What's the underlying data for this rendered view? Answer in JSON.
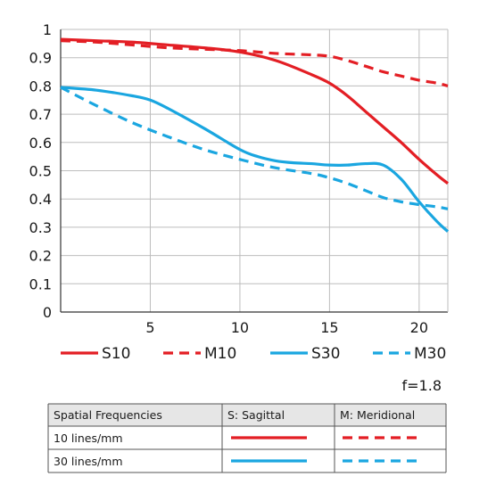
{
  "chart_data": {
    "type": "line",
    "title": "",
    "xlabel": "",
    "ylabel": "",
    "xlim": [
      0,
      21.6
    ],
    "ylim": [
      0,
      1
    ],
    "xticks": [
      5,
      10,
      15,
      20
    ],
    "yticks": [
      0,
      0.1,
      0.2,
      0.3,
      0.4,
      0.5,
      0.6,
      0.7,
      0.8,
      0.9,
      1
    ],
    "ytick_labels": [
      "0",
      "0.1",
      "0.2",
      "0.3",
      "0.4",
      "0.5",
      "0.6",
      "0.7",
      "0.8",
      "0.9",
      "1"
    ],
    "xtick_labels": [
      "5",
      "10",
      "15",
      "20"
    ],
    "grid": true,
    "legend_position": "bottom",
    "series": [
      {
        "name": "S10",
        "color": "#e31e24",
        "dash": "solid",
        "x": [
          0,
          2,
          4,
          6,
          8,
          10,
          12,
          14,
          15,
          16,
          17,
          18,
          19,
          20,
          21,
          21.6
        ],
        "y": [
          0.965,
          0.96,
          0.955,
          0.945,
          0.935,
          0.92,
          0.89,
          0.84,
          0.81,
          0.765,
          0.71,
          0.655,
          0.6,
          0.54,
          0.485,
          0.455
        ]
      },
      {
        "name": "M10",
        "color": "#e31e24",
        "dash": "dashed",
        "x": [
          0,
          2,
          4,
          6,
          8,
          10,
          12,
          14,
          15,
          16,
          17,
          18,
          19,
          20,
          21,
          21.6
        ],
        "y": [
          0.96,
          0.955,
          0.945,
          0.935,
          0.93,
          0.925,
          0.915,
          0.91,
          0.905,
          0.89,
          0.87,
          0.85,
          0.835,
          0.82,
          0.81,
          0.8
        ]
      },
      {
        "name": "S30",
        "color": "#1aa6e0",
        "dash": "solid",
        "x": [
          0,
          2,
          4,
          5,
          6,
          8,
          10,
          11,
          12,
          13,
          14,
          15,
          16,
          17,
          18,
          19,
          20,
          21,
          21.6
        ],
        "y": [
          0.795,
          0.785,
          0.765,
          0.75,
          0.72,
          0.65,
          0.575,
          0.55,
          0.535,
          0.528,
          0.525,
          0.52,
          0.52,
          0.525,
          0.52,
          0.47,
          0.39,
          0.32,
          0.285
        ]
      },
      {
        "name": "M30",
        "color": "#1aa6e0",
        "dash": "dashed",
        "x": [
          0,
          2,
          4,
          6,
          8,
          10,
          12,
          14,
          15,
          16,
          17,
          18,
          19,
          20,
          21,
          21.6
        ],
        "y": [
          0.795,
          0.73,
          0.67,
          0.62,
          0.575,
          0.54,
          0.51,
          0.49,
          0.475,
          0.455,
          0.43,
          0.405,
          0.39,
          0.38,
          0.372,
          0.365
        ]
      }
    ]
  },
  "legend": {
    "items": [
      {
        "name": "S10",
        "color": "#e31e24",
        "dash": "solid"
      },
      {
        "name": "M10",
        "color": "#e31e24",
        "dash": "dashed"
      },
      {
        "name": "S30",
        "color": "#1aa6e0",
        "dash": "solid"
      },
      {
        "name": "M30",
        "color": "#1aa6e0",
        "dash": "dashed"
      }
    ]
  },
  "aperture_label": "f=1.8",
  "table": {
    "headers": [
      "Spatial Frequencies",
      "S: Sagittal",
      "M: Meridional"
    ],
    "rows": [
      {
        "label": "10 lines/mm",
        "color": "#e31e24"
      },
      {
        "label": "30 lines/mm",
        "color": "#1aa6e0"
      }
    ]
  }
}
